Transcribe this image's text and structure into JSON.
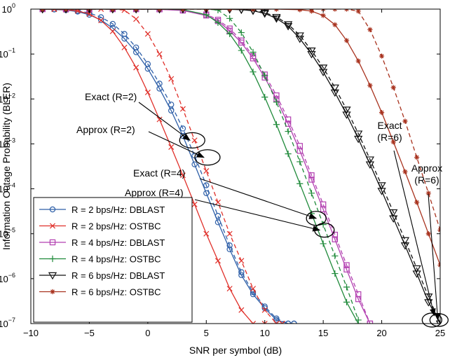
{
  "chart_data": {
    "type": "line",
    "title": "",
    "xlabel": "SNR per symbol (dB)",
    "ylabel": "Information Outage Probability (BLER)",
    "xlim": [
      -10,
      25
    ],
    "ylim": [
      1e-07,
      1
    ],
    "yscale": "log",
    "grid": false,
    "x_ticks": [
      -10,
      -5,
      0,
      5,
      10,
      15,
      20,
      25
    ],
    "x_tick_labels": [
      "−10",
      "−5",
      "0",
      "5",
      "10",
      "15",
      "20",
      "25"
    ],
    "y_ticks": [
      1e-07,
      1e-06,
      1e-05,
      0.0001,
      0.001,
      0.01,
      0.1,
      1
    ],
    "y_tick_labels": [
      {
        "base": "10",
        "exp": "−7"
      },
      {
        "base": "10",
        "exp": "−6"
      },
      {
        "base": "10",
        "exp": "−5"
      },
      {
        "base": "10",
        "exp": "−4"
      },
      {
        "base": "10",
        "exp": "−3"
      },
      {
        "base": "10",
        "exp": "−2"
      },
      {
        "base": "10",
        "exp": "−1"
      },
      {
        "base": "10",
        "exp": "0"
      }
    ],
    "legend_position": "bottom-left",
    "series": [
      {
        "name": "R = 2 bps/Hz: DBLAST",
        "color": "#2e5fa8",
        "marker": "circle",
        "x": [
          -9,
          -8,
          -7,
          -6,
          -5,
          -4,
          -3,
          -2,
          -1,
          0,
          1,
          2,
          3,
          4,
          5,
          6,
          7,
          8,
          9,
          10,
          11,
          12,
          12.5
        ],
        "exact": [
          1,
          0.98,
          0.95,
          0.88,
          0.75,
          0.57,
          0.38,
          0.22,
          0.11,
          0.047,
          0.017,
          0.0055,
          0.0015,
          0.00035,
          8e-05,
          1.8e-05,
          4.5e-06,
          1.2e-06,
          4.5e-07,
          2.2e-07,
          1.2e-07,
          8e-08,
          6e-08
        ],
        "approx": [
          1,
          0.99,
          0.97,
          0.92,
          0.82,
          0.66,
          0.47,
          0.28,
          0.14,
          0.06,
          0.022,
          0.0075,
          0.0022,
          0.00055,
          0.00012,
          2.5e-05,
          5.5e-06,
          1.4e-06,
          5e-07,
          2.4e-07,
          1.3e-07,
          8e-08,
          6e-08
        ]
      },
      {
        "name": "R = 2 bps/Hz: OSTBC",
        "color": "#e0302a",
        "marker": "x",
        "x": [
          -9,
          -8,
          -7,
          -6,
          -5,
          -4,
          -3,
          -2,
          -1,
          0,
          1,
          2,
          3,
          4,
          5,
          6,
          7,
          8,
          9,
          10,
          11,
          11.5
        ],
        "exact": [
          1,
          0.99,
          0.97,
          0.91,
          0.78,
          0.56,
          0.32,
          0.14,
          0.05,
          0.014,
          0.0035,
          0.00085,
          0.0002,
          4.5e-05,
          1e-05,
          2.5e-06,
          6e-07,
          2e-07,
          1e-07,
          7e-08,
          6e-08,
          5e-08
        ],
        "approx": [
          1,
          1,
          1,
          1,
          1,
          1,
          1,
          0.95,
          0.6,
          0.28,
          0.1,
          0.028,
          0.006,
          0.0012,
          0.00025,
          5e-05,
          1e-05,
          2.5e-06,
          6e-07,
          2e-07,
          1e-07,
          6e-08
        ]
      },
      {
        "name": "R = 4 bps/Hz: DBLAST",
        "color": "#b23fb0",
        "marker": "square",
        "x": [
          -9,
          -7,
          -5,
          -3,
          -1,
          1,
          3,
          5,
          6,
          7,
          8,
          9,
          10,
          11,
          12,
          13,
          14,
          15,
          16,
          17,
          18,
          19
        ],
        "exact": [
          1,
          1,
          1,
          1,
          1,
          0.99,
          0.93,
          0.72,
          0.54,
          0.33,
          0.18,
          0.08,
          0.03,
          0.01,
          0.0028,
          0.0007,
          0.00016,
          3.5e-05,
          7.5e-06,
          1.6e-06,
          3.5e-07,
          8e-08
        ],
        "approx": [
          1,
          1,
          1,
          1,
          1,
          0.99,
          0.95,
          0.76,
          0.58,
          0.37,
          0.2,
          0.09,
          0.035,
          0.012,
          0.0035,
          0.0009,
          0.0002,
          4.5e-05,
          9.5e-06,
          2e-06,
          4.5e-07,
          1e-07
        ]
      },
      {
        "name": "R = 4 bps/Hz: OSTBC",
        "color": "#1f8a3a",
        "marker": "plus",
        "x": [
          -9,
          -7,
          -5,
          -3,
          -1,
          1,
          3,
          5,
          6,
          7,
          8,
          9,
          10,
          11,
          12,
          13,
          14,
          15,
          16,
          17,
          18
        ],
        "exact": [
          1,
          1,
          1,
          1,
          1,
          1,
          0.97,
          0.75,
          0.5,
          0.28,
          0.12,
          0.04,
          0.011,
          0.0027,
          0.0006,
          0.00013,
          2.8e-05,
          6e-06,
          1.3e-06,
          3e-07,
          7e-08
        ],
        "approx": [
          1,
          1,
          1,
          1,
          1,
          1,
          1,
          1,
          0.95,
          0.62,
          0.3,
          0.11,
          0.033,
          0.0085,
          0.0019,
          0.0004,
          8e-05,
          1.6e-05,
          3.2e-06,
          6.5e-07,
          1.2e-07
        ]
      },
      {
        "name": "R = 6 bps/Hz: DBLAST",
        "color": "#111111",
        "marker": "triangle-down",
        "x": [
          -9,
          -7,
          -5,
          -3,
          -1,
          1,
          3,
          5,
          7,
          8,
          9,
          10,
          11,
          12,
          13,
          14,
          15,
          16,
          17,
          18,
          19,
          20,
          21,
          22,
          23,
          24,
          25
        ],
        "exact": [
          1,
          1,
          1,
          1,
          1,
          1,
          1,
          1,
          0.99,
          0.97,
          0.92,
          0.8,
          0.62,
          0.42,
          0.22,
          0.1,
          0.04,
          0.014,
          0.0045,
          0.0013,
          0.00035,
          9e-05,
          2.2e-05,
          5.5e-06,
          1.3e-06,
          3e-07,
          8e-08
        ],
        "approx": [
          1,
          1,
          1,
          1,
          1,
          1,
          1,
          1,
          1,
          0.98,
          0.94,
          0.84,
          0.67,
          0.46,
          0.26,
          0.12,
          0.05,
          0.018,
          0.0058,
          0.0017,
          0.00045,
          0.00012,
          3e-05,
          7.2e-06,
          1.7e-06,
          4e-07,
          1e-07
        ]
      },
      {
        "name": "R = 6 bps/Hz: OSTBC",
        "color": "#a8321e",
        "marker": "star",
        "x": [
          -9,
          -7,
          -5,
          -3,
          -1,
          1,
          3,
          5,
          7,
          9,
          11,
          13,
          14,
          15,
          16,
          17,
          18,
          19,
          20,
          21,
          22,
          23,
          24,
          25
        ],
        "exact": [
          1,
          1,
          1,
          1,
          1,
          1,
          1,
          1,
          1,
          1,
          1,
          0.97,
          0.9,
          0.72,
          0.45,
          0.2,
          0.07,
          0.02,
          0.005,
          0.0011,
          0.00024,
          5e-05,
          1e-05,
          2e-06
        ],
        "approx": [
          1,
          1,
          1,
          1,
          1,
          1,
          1,
          1,
          1,
          1,
          1,
          1,
          1,
          1,
          1,
          1,
          0.9,
          0.35,
          0.09,
          0.018,
          0.0032,
          0.0005,
          8e-05,
          1.2e-05
        ]
      }
    ],
    "annotations": [
      {
        "text": "Exact (R=2)",
        "target": [
          3.6,
          0.0012
        ]
      },
      {
        "text": "Approx (R=2)",
        "target": [
          4.8,
          0.0005
        ]
      },
      {
        "text": "Exact (R=4)",
        "target": [
          14.4,
          2.2e-05
        ]
      },
      {
        "text": "Approx (R=4)",
        "target": [
          14.7,
          1.2e-05
        ]
      },
      {
        "lines": [
          "Exact",
          "(R=6)"
        ],
        "target": [
          24.5,
          1.5e-07
        ]
      },
      {
        "lines": [
          "Approx",
          "(R=6)"
        ],
        "target": [
          24.8,
          1.2e-07
        ]
      }
    ]
  }
}
